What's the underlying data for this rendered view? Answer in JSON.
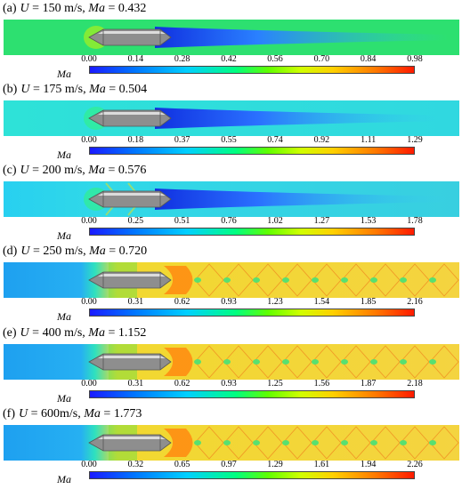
{
  "panels": [
    {
      "label": "(a)",
      "u_var": "U",
      "u_text": " = 150 m/s, ",
      "ma_var": "Ma",
      "ma_text": " = 0.432",
      "colorbar_label": "Ma",
      "ticks": [
        "0.00",
        "0.14",
        "0.28",
        "0.42",
        "0.56",
        "0.70",
        "0.84",
        "0.98"
      ],
      "regime": "subsonic-low"
    },
    {
      "label": "(b)",
      "u_var": "U",
      "u_text": " = 175 m/s, ",
      "ma_var": "Ma",
      "ma_text": " = 0.504",
      "colorbar_label": "Ma",
      "ticks": [
        "0.00",
        "0.18",
        "0.37",
        "0.55",
        "0.74",
        "0.92",
        "1.11",
        "1.29"
      ],
      "regime": "subsonic"
    },
    {
      "label": "(c)",
      "u_var": "U",
      "u_text": " = 200 m/s, ",
      "ma_var": "Ma",
      "ma_text": " = 0.576",
      "colorbar_label": "Ma",
      "ticks": [
        "0.00",
        "0.25",
        "0.51",
        "0.76",
        "1.02",
        "1.27",
        "1.53",
        "1.78"
      ],
      "regime": "subsonic-high"
    },
    {
      "label": "(d)",
      "u_var": "U",
      "u_text": " = 250 m/s, ",
      "ma_var": "Ma",
      "ma_text": " = 0.720",
      "colorbar_label": "Ma",
      "ticks": [
        "0.00",
        "0.31",
        "0.62",
        "0.93",
        "1.23",
        "1.54",
        "1.85",
        "2.16"
      ],
      "regime": "shock"
    },
    {
      "label": "(e)",
      "u_var": "U",
      "u_text": " = 400 m/s, ",
      "ma_var": "Ma",
      "ma_text": " = 1.152",
      "colorbar_label": "Ma",
      "ticks": [
        "0.00",
        "0.31",
        "0.62",
        "0.93",
        "1.25",
        "1.56",
        "1.87",
        "2.18"
      ],
      "regime": "shock"
    },
    {
      "label": "(f)",
      "u_var": "U",
      "u_text": " = 600m/s, ",
      "ma_var": "Ma",
      "ma_text": " = 1.773",
      "colorbar_label": "Ma",
      "ticks": [
        "0.00",
        "0.32",
        "0.65",
        "0.97",
        "1.29",
        "1.61",
        "1.94",
        "2.26"
      ],
      "regime": "shock"
    }
  ],
  "colors": {
    "background_green": "#1fd86a",
    "background_cyan": "#20d8e8",
    "free_stream_blue": "#1ea0f0",
    "wake_blue": "#1030e0",
    "shock_yellow": "#f0d020",
    "shock_orange": "#ff8a10",
    "projectile_gray": "#9a9a9a"
  }
}
